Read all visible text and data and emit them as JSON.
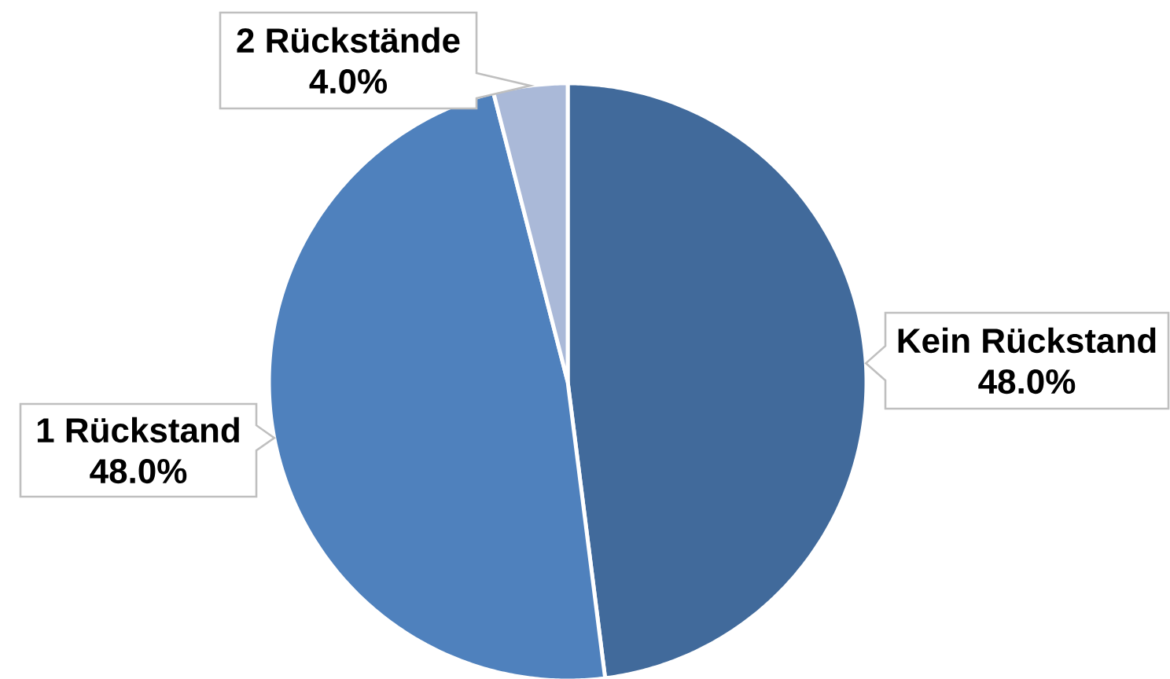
{
  "chart_data": {
    "type": "pie",
    "categories": [
      "Kein Rückstand",
      "1 Rückstand",
      "2 Rückstände"
    ],
    "values": [
      48,
      48,
      4
    ],
    "colors": [
      "#416A9B",
      "#4F81BD",
      "#AAB9D8"
    ],
    "value_labels": [
      "48.0%",
      "48.0%",
      "4.0%"
    ]
  }
}
